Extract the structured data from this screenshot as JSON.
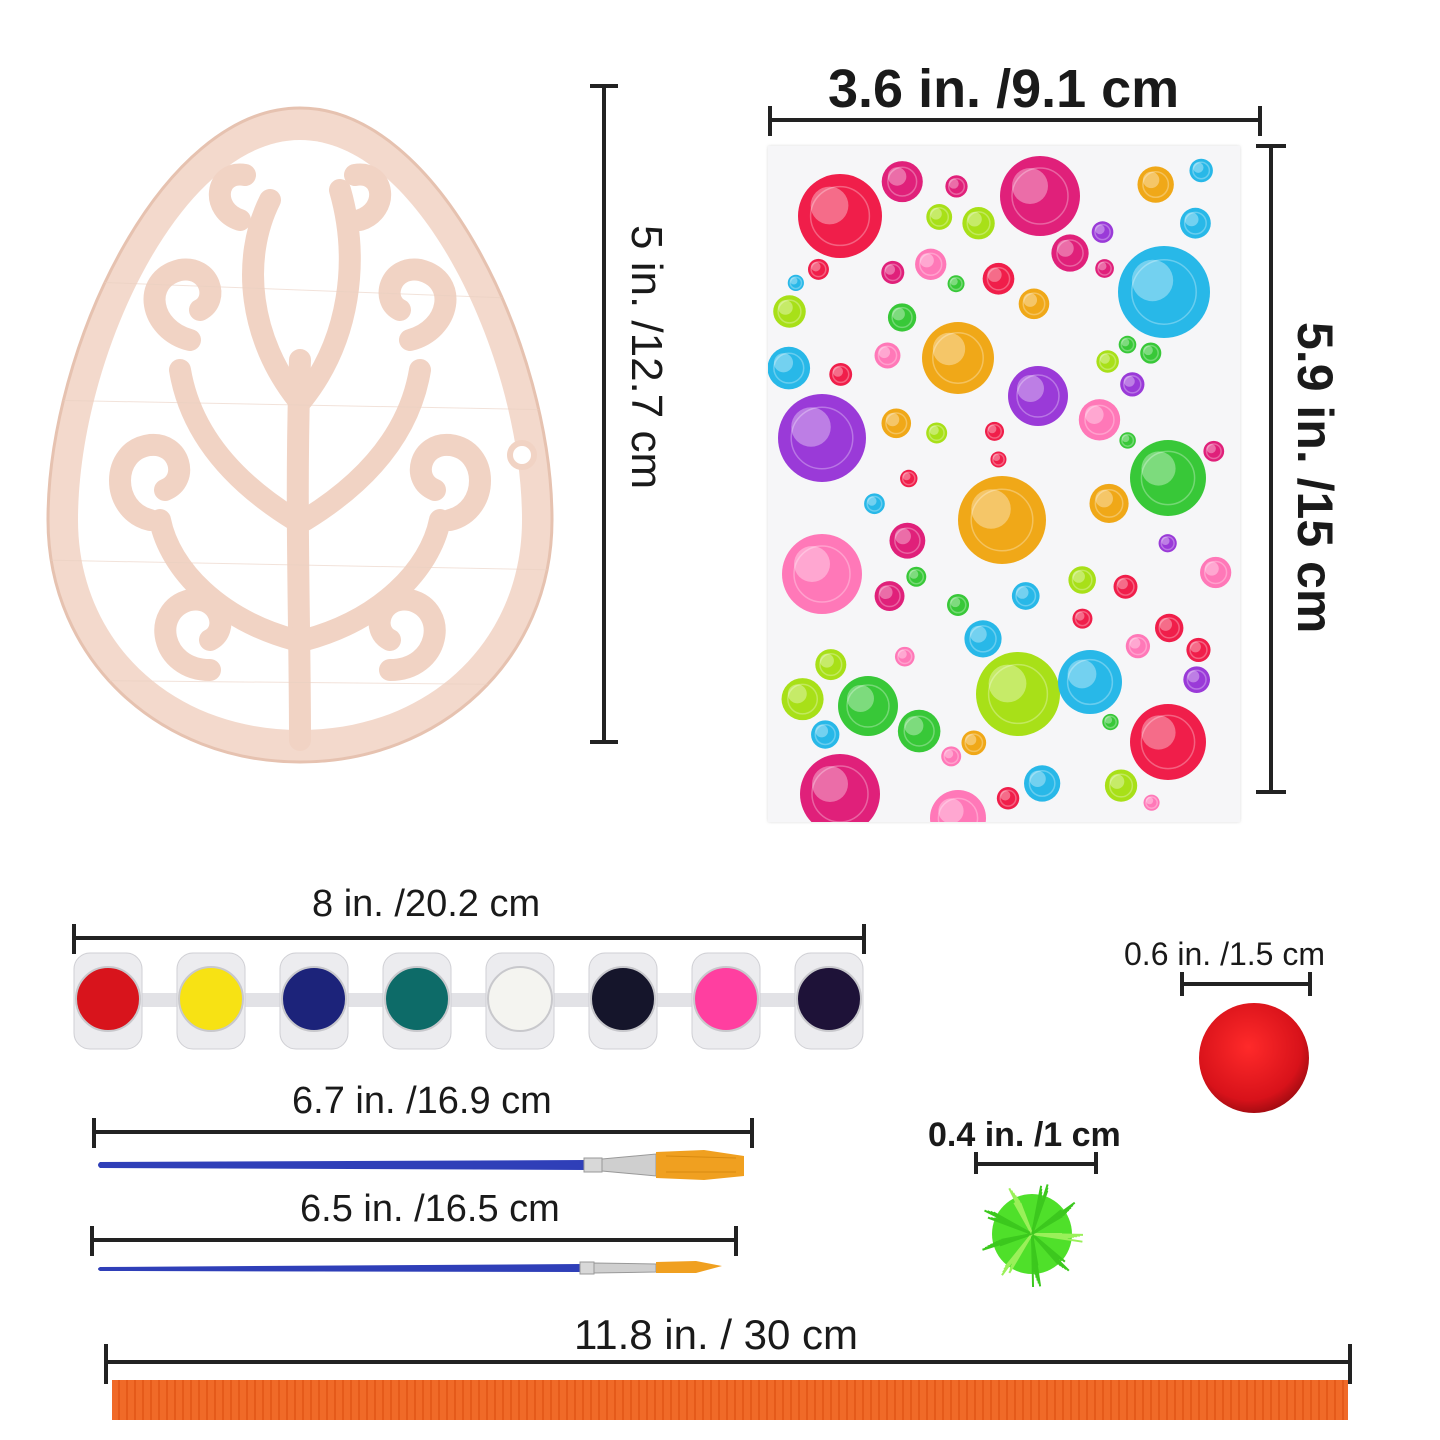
{
  "labels": {
    "egg_height": "5 in. /12.7 cm",
    "sheet_width": "3.6 in. /9.1 cm",
    "sheet_height": "5.9 in. /15 cm",
    "paint_strip": "8 in. /20.2 cm",
    "brush_large": "6.7 in. /16.9 cm",
    "brush_small": "6.5 in. /16.5 cm",
    "pompom_large": "0.6 in. /1.5 cm",
    "pompom_small": "0.4 in. /1 cm",
    "ribbon": "11.8 in. / 30 cm"
  },
  "paint_colors": [
    "#d8141c",
    "#f7e214",
    "#1c237a",
    "#0d6b68",
    "#f4f4f0",
    "#15152b",
    "#ff3fa0",
    "#1e1238"
  ],
  "colors": {
    "wood": "#f3d9cc",
    "wood_dark": "#e9c6b4",
    "brush_handle": "#2f3fb8",
    "brush_bristle": "#f0a020",
    "pompom_red": "#d8121a",
    "pompom_green": "#4fe02a",
    "ribbon": "#f06a28"
  },
  "gem_colors": [
    "#f01e4a",
    "#e0207a",
    "#28b8e8",
    "#9a3ad8",
    "#f0a818",
    "#38c838",
    "#ff78b8",
    "#a8e018"
  ]
}
